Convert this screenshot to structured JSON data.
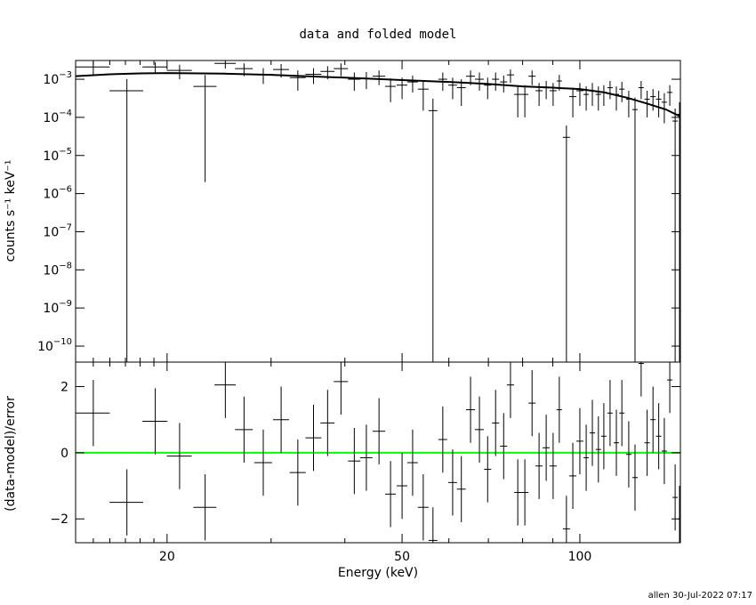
{
  "chart_data": [
    {
      "type": "scatter",
      "title": "data and folded model",
      "ylabel": "counts s⁻¹ keV⁻¹",
      "log_x": true,
      "log_y": true,
      "xlim": [
        14,
        148
      ],
      "ylim": [
        3.8e-11,
        0.0031
      ],
      "yticks": [
        {
          "value": 0.001,
          "label": "10",
          "exponent": "−3"
        },
        {
          "value": 0.0001,
          "label": "10",
          "exponent": "−4"
        },
        {
          "value": 1e-05,
          "label": "10",
          "exponent": "−5"
        },
        {
          "value": 1e-06,
          "label": "10",
          "exponent": "−6"
        },
        {
          "value": 1e-07,
          "label": "10",
          "exponent": "−7"
        },
        {
          "value": 1e-08,
          "label": "10",
          "exponent": "−8"
        },
        {
          "value": 1e-09,
          "label": "10",
          "exponent": "−9"
        },
        {
          "value": 1e-10,
          "label": "10",
          "exponent": "−10"
        }
      ],
      "color": "#000000",
      "x": [
        15,
        17.1,
        19.1,
        21,
        23.2,
        25.1,
        27,
        29.1,
        31.2,
        33.3,
        35.4,
        37.4,
        39.4,
        41.5,
        43.5,
        45.7,
        47.8,
        50,
        52.1,
        54.3,
        56.4,
        58.6,
        60.9,
        63,
        65.3,
        67.6,
        69.8,
        72,
        74.3,
        76.3,
        78.5,
        80.7,
        83,
        85.3,
        87.7,
        90.1,
        92.3,
        94.9,
        97.3,
        100,
        102.5,
        105,
        107.5,
        109.8,
        112.5,
        115.3,
        117.8,
        121,
        124,
        127,
        130,
        133,
        136,
        139,
        142,
        145,
        147.5
      ],
      "xerr": [
        0.99,
        1.12,
        0.93,
        1.02,
        1.04,
        1.04,
        0.93,
        1.01,
        0.97,
        1.04,
        1.1,
        1.03,
        1.09,
        1.0,
        1.05,
        1.11,
        0.99,
        1.04,
        1.08,
        1.13,
        0.98,
        1.01,
        1.05,
        1.09,
        1.13,
        1.17,
        0.97,
        1.0,
        1.03,
        1.06,
        1.09,
        1.12,
        1.15,
        1.18,
        1.21,
        1.25,
        0.96,
        1.31,
        1.35,
        1.38,
        1.06,
        1.09,
        1.12,
        1.14,
        1.17,
        1.2,
        1.22,
        1.26,
        1.29,
        1.32,
        1.35,
        1.38,
        1.41,
        1.44,
        1.47,
        1.5,
        1.02
      ],
      "values": [
        0.0021,
        0.0005,
        0.0021,
        0.0017,
        0.00065,
        0.0026,
        0.0019,
        0.00135,
        0.0018,
        0.0011,
        0.00135,
        0.0016,
        0.0019,
        0.001,
        0.00105,
        0.0012,
        0.00065,
        0.0007,
        0.00085,
        0.00055,
        0.00015,
        0.001,
        0.0007,
        0.0006,
        0.0012,
        0.001,
        0.0007,
        0.001,
        0.00085,
        0.0013,
        0.0004,
        0.0004,
        0.0012,
        0.0005,
        0.0006,
        0.0005,
        0.0009,
        3e-05,
        0.00035,
        0.0005,
        0.0004,
        0.0005,
        0.0004,
        0.00045,
        0.0006,
        0.0004,
        0.00055,
        0.0003,
        0.00016,
        0.0006,
        0.0003,
        0.00035,
        0.0003,
        0.00025,
        0.00045,
        8e-05,
        0.00012
      ],
      "yerr": [
        0.0008,
        0.00051,
        0.0007,
        0.0007,
        0.000648,
        0.0007,
        0.0007,
        0.0006,
        0.0007,
        0.0006,
        0.0006,
        0.0006,
        0.0007,
        0.0005,
        0.0005,
        0.0005,
        0.0004,
        0.0004,
        0.0004,
        0.0004,
        0.00016,
        0.0005,
        0.0004,
        0.0004,
        0.0005,
        0.0005,
        0.0004,
        0.0005,
        0.0004,
        0.0005,
        0.0003,
        0.0003,
        0.0005,
        0.0003,
        0.0003,
        0.0003,
        0.0004,
        3.1e-05,
        0.00025,
        0.0003,
        0.00025,
        0.0003,
        0.00025,
        0.00025,
        0.0003,
        0.00025,
        0.0003,
        0.0002,
        0.00017,
        0.0003,
        0.0002,
        0.0002,
        0.0002,
        0.00018,
        0.00025,
        9e-05,
        0.00013
      ],
      "model": {
        "color": "#000000",
        "x": [
          14,
          16,
          18,
          20,
          25,
          30,
          40,
          50,
          60,
          70,
          80,
          90,
          100,
          110,
          120,
          130,
          140,
          148
        ],
        "values": [
          0.0012,
          0.00135,
          0.00142,
          0.00145,
          0.0014,
          0.0013,
          0.0011,
          0.00095,
          0.00085,
          0.00075,
          0.00065,
          0.0006,
          0.00055,
          0.00045,
          0.00033,
          0.00023,
          0.00016,
          0.000105
        ]
      }
    },
    {
      "type": "scatter",
      "xlabel": "Energy (keV)",
      "ylabel": "(data-model)/error",
      "log_x": true,
      "xlim": [
        14,
        148
      ],
      "xticks": [
        20,
        50,
        100
      ],
      "xminor_ticks": [
        15,
        16,
        17,
        18,
        19,
        30,
        40,
        60,
        70,
        80,
        90
      ],
      "ylim": [
        -2.72,
        2.74
      ],
      "yticks": [
        {
          "value": -2,
          "label": "−2"
        },
        0,
        2
      ],
      "color": "#000000",
      "zero_line_color": "#00ff00",
      "values": [
        1.2,
        -1.5,
        0.95,
        -0.1,
        -1.65,
        2.05,
        0.7,
        -0.3,
        1.0,
        -0.6,
        0.45,
        0.9,
        2.15,
        -0.25,
        -0.15,
        0.65,
        -1.25,
        -1.0,
        -0.3,
        -1.65,
        -2.65,
        0.4,
        -0.9,
        -1.1,
        1.3,
        0.7,
        -0.5,
        0.9,
        0.2,
        2.05,
        -1.2,
        -1.2,
        1.5,
        -0.4,
        0.15,
        -0.4,
        1.3,
        -2.3,
        -0.7,
        0.35,
        -0.15,
        0.6,
        0.1,
        0.5,
        1.2,
        0.3,
        1.2,
        -0.05,
        -0.75,
        2.7,
        0.3,
        1.0,
        0.5,
        0.05,
        2.2,
        -1.35,
        -2.0
      ],
      "yerr": [
        1,
        1,
        1,
        1,
        1,
        1,
        1,
        1,
        1,
        1,
        1,
        1,
        1,
        1,
        1,
        1,
        1,
        1,
        1,
        1,
        1,
        1,
        1,
        1,
        1,
        1,
        1,
        1,
        1,
        1,
        1,
        1,
        1,
        1,
        1,
        1,
        1,
        1,
        1,
        1,
        1,
        1,
        1,
        1,
        1,
        1,
        1,
        1,
        1,
        1,
        1,
        1,
        1,
        1,
        1,
        1,
        1
      ]
    }
  ],
  "footer": "allen 30-Jul-2022 07:17"
}
